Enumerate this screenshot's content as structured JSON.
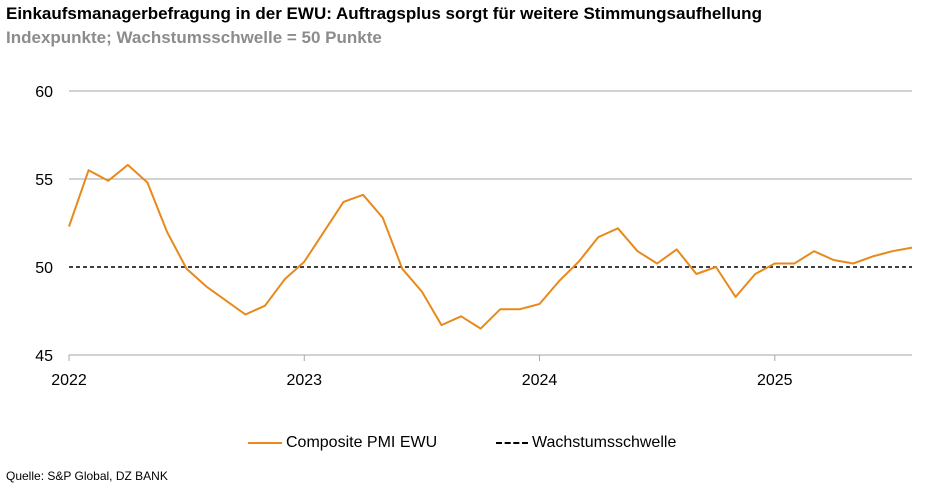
{
  "title": "Einkaufsmanagerbefragung in der EWU: Auftragsplus sorgt für weitere Stimmungsaufhellung",
  "subtitle": "Indexpunkte; Wachstumsschwelle = 50 Punkte",
  "source": "Quelle: S&P Global, DZ BANK",
  "colors": {
    "pmi": "#e8891c",
    "threshold": "#000000",
    "grid": "#a6a6a6"
  },
  "chart_data": {
    "type": "line",
    "ylim": [
      45,
      60
    ],
    "yticks": [
      45,
      50,
      55,
      60
    ],
    "xticks": [
      {
        "label": "2022",
        "x": 2022.0
      },
      {
        "label": "2023",
        "x": 2023.0
      },
      {
        "label": "2024",
        "x": 2024.0
      },
      {
        "label": "2025",
        "x": 2025.0
      }
    ],
    "xlim": [
      2022.0,
      2025.5833
    ],
    "grid": true,
    "legend_position": "bottom",
    "series": [
      {
        "name": "Composite PMI EWU",
        "style": "solid",
        "x": [
          "2022-01",
          "2022-02",
          "2022-03",
          "2022-04",
          "2022-05",
          "2022-06",
          "2022-07",
          "2022-08",
          "2022-09",
          "2022-10",
          "2022-11",
          "2022-12",
          "2023-01",
          "2023-02",
          "2023-03",
          "2023-04",
          "2023-05",
          "2023-06",
          "2023-07",
          "2023-08",
          "2023-09",
          "2023-10",
          "2023-11",
          "2023-12",
          "2024-01",
          "2024-02",
          "2024-03",
          "2024-04",
          "2024-05",
          "2024-06",
          "2024-07",
          "2024-08",
          "2024-09",
          "2024-10",
          "2024-11",
          "2024-12",
          "2025-01",
          "2025-02",
          "2025-03",
          "2025-04",
          "2025-05",
          "2025-06",
          "2025-07",
          "2025-08"
        ],
        "values": [
          52.3,
          55.5,
          54.9,
          55.8,
          54.8,
          52.0,
          49.9,
          48.9,
          48.1,
          47.3,
          47.8,
          49.3,
          50.3,
          52.0,
          53.7,
          54.1,
          52.8,
          49.9,
          48.6,
          46.7,
          47.2,
          46.5,
          47.6,
          47.6,
          47.9,
          49.2,
          50.3,
          51.7,
          52.2,
          50.9,
          50.2,
          51.0,
          49.6,
          50.0,
          48.3,
          49.6,
          50.2,
          50.2,
          50.9,
          50.4,
          50.2,
          50.6,
          50.9,
          51.1
        ]
      },
      {
        "name": "Wachstumsschwelle",
        "style": "dashed",
        "value": 50
      }
    ]
  }
}
